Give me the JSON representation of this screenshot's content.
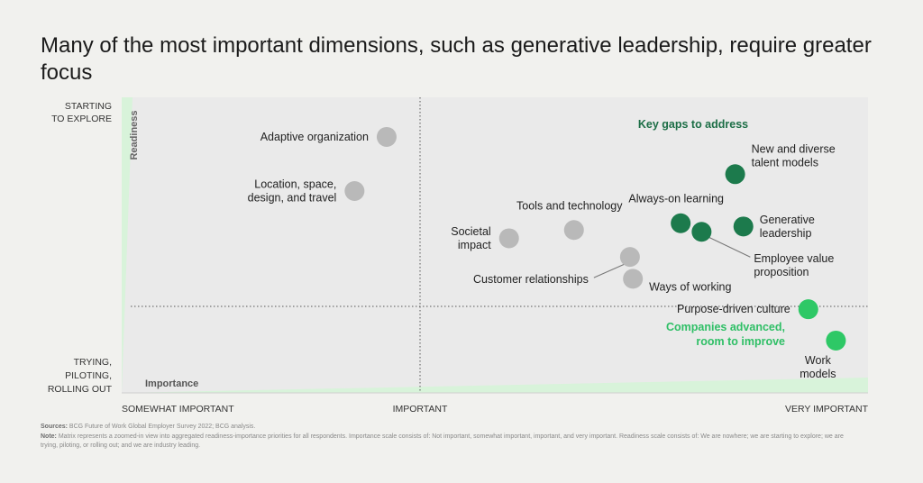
{
  "title": "Many of the most important dimensions, such as generative leadership, require greater focus",
  "colors": {
    "background": "#f1f1ee",
    "plot_bg": "#eaeaea",
    "gray_point": "#b9b9b9",
    "dark_green": "#1c7a4c",
    "bright_green": "#2ec866",
    "gap_text": "#1c6e46",
    "advanced_text": "#2fbf66",
    "axis_band": "#d8f3da"
  },
  "chart_data": {
    "type": "scatter",
    "title": "Many of the most important dimensions, such as generative leadership, require greater focus",
    "xlabel": "Importance",
    "ylabel": "Readiness",
    "x_ticks": [
      "SOMEWHAT IMPORTANT",
      "IMPORTANT",
      "VERY IMPORTANT"
    ],
    "xlim": [
      0,
      100
    ],
    "ylim": [
      0,
      100
    ],
    "y_top_label": [
      "STARTING",
      "TO EXPLORE"
    ],
    "y_bottom_label": [
      "TRYING,",
      "PILOTING,",
      "ROLLING OUT"
    ],
    "quadrant_labels": {
      "top_right": "Key gaps to address",
      "bottom_right": [
        "Companies advanced,",
        "room to improve"
      ]
    },
    "points": [
      {
        "label": [
          "Adaptive organization"
        ],
        "x": 35.5,
        "y": 86.6,
        "group": "gray",
        "label_side": "left"
      },
      {
        "label": [
          "Location, space,",
          "design, and travel"
        ],
        "x": 31.2,
        "y": 68.3,
        "group": "gray",
        "label_side": "left"
      },
      {
        "label": [
          "Societal",
          "impact"
        ],
        "x": 51.9,
        "y": 52.3,
        "group": "gray",
        "label_side": "left"
      },
      {
        "label": [
          "Tools and technology"
        ],
        "x": 60.6,
        "y": 55.1,
        "group": "gray",
        "label_side": "above"
      },
      {
        "label": [
          "Customer relationships"
        ],
        "x": 68.1,
        "y": 46.0,
        "group": "gray",
        "label_side": "leader-left"
      },
      {
        "label": [
          "Ways of working"
        ],
        "x": 68.5,
        "y": 38.6,
        "group": "gray",
        "label_side": "right"
      },
      {
        "label": [
          "Always-on learning"
        ],
        "x": 74.9,
        "y": 57.4,
        "group": "dark",
        "label_side": "above"
      },
      {
        "label": [
          "Employee value",
          "proposition"
        ],
        "x": 77.7,
        "y": 54.5,
        "group": "dark",
        "label_side": "leader-right"
      },
      {
        "label": [
          "New and diverse",
          "talent models"
        ],
        "x": 82.2,
        "y": 74.0,
        "group": "dark",
        "label_side": "above-right"
      },
      {
        "label": [
          "Generative",
          "leadership"
        ],
        "x": 83.3,
        "y": 56.3,
        "group": "dark",
        "label_side": "right"
      },
      {
        "label": [
          "Purpose-driven culture"
        ],
        "x": 92.0,
        "y": 28.3,
        "group": "bright",
        "label_side": "left"
      },
      {
        "label": [
          "Work",
          "models"
        ],
        "x": 95.7,
        "y": 17.7,
        "group": "bright",
        "label_side": "below"
      }
    ]
  },
  "footnote": {
    "sources_label": "Sources:",
    "sources_text": "BCG Future of Work Global Employer Survey 2022; BCG analysis.",
    "note_label": "Note:",
    "note_text": "Matrix represents a zoomed-in view into aggregated readiness-importance priorities for all respondents. Importance scale consists of: Not important, somewhat important, important, and very important. Readiness scale consists of: We are nowhere; we are starting to explore; we are trying, piloting, or rolling out; and we are industry leading."
  }
}
